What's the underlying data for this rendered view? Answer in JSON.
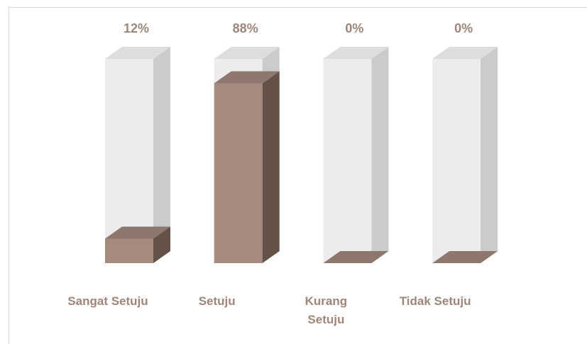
{
  "chart_data": {
    "type": "bar",
    "categories": [
      "Sangat Setuju",
      "Setuju",
      "Kurang Setuju",
      "Tidak Setuju"
    ],
    "values": [
      12,
      88,
      0,
      0
    ],
    "value_labels": [
      "12%",
      "88%",
      "0%",
      "0%"
    ],
    "color": "#a58a7e",
    "ylim": [
      0,
      100
    ]
  }
}
